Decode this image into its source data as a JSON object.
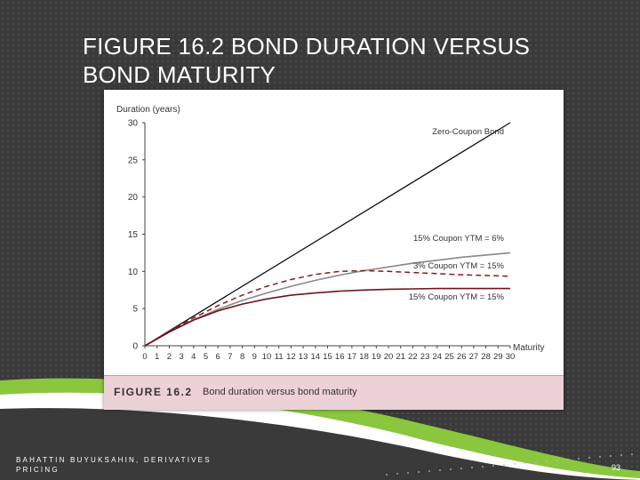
{
  "slide": {
    "title": "FIGURE 16.2 BOND DURATION VERSUS BOND MATURITY",
    "footer_author": "BAHATTIN BUYUKSAHIN, DERIVATIVES PRICING",
    "page_number": "93"
  },
  "figure": {
    "caption_number": "FIGURE 16.2",
    "caption_text": "Bond duration versus bond maturity"
  },
  "colors": {
    "background": "#3a3a3a",
    "accent_green": "#8bc63f",
    "caption_bar": "#ecd1d6",
    "zero_coupon": "#111111",
    "coupon15_ytm6": "#888888",
    "coupon3_ytm15": "#8b1a1a",
    "coupon15_ytm15": "#6b1520"
  },
  "chart_data": {
    "type": "line",
    "ylabel": "Duration (years)",
    "xlabel": "Maturity",
    "xlim": [
      0,
      30
    ],
    "ylim": [
      0,
      30
    ],
    "y_ticks": [
      0,
      5,
      10,
      15,
      20,
      25,
      30
    ],
    "x_ticks": [
      0,
      1,
      2,
      3,
      4,
      5,
      6,
      7,
      8,
      9,
      10,
      11,
      12,
      13,
      14,
      15,
      16,
      17,
      18,
      19,
      20,
      21,
      22,
      23,
      24,
      25,
      26,
      27,
      28,
      29,
      30
    ],
    "grid": false,
    "series": [
      {
        "name": "Zero-Coupon Bond",
        "style": "solid",
        "color_key": "zero_coupon",
        "x": [
          0,
          30
        ],
        "y": [
          0,
          30
        ]
      },
      {
        "name": "15% Coupon YTM = 6%",
        "style": "solid",
        "color_key": "coupon15_ytm6",
        "x": [
          0,
          2,
          4,
          6,
          8,
          10,
          12,
          14,
          16,
          18,
          20,
          22,
          24,
          26,
          28,
          30
        ],
        "y": [
          0,
          1.85,
          3.5,
          4.9,
          6.1,
          7.1,
          8.0,
          8.8,
          9.5,
          10.1,
          10.6,
          11.1,
          11.5,
          11.9,
          12.2,
          12.5
        ]
      },
      {
        "name": "3% Coupon YTM = 15%",
        "style": "dashed",
        "color_key": "coupon3_ytm15",
        "x": [
          0,
          2,
          4,
          6,
          8,
          10,
          12,
          14,
          16,
          18,
          20,
          22,
          24,
          26,
          28,
          30
        ],
        "y": [
          0,
          1.95,
          3.75,
          5.4,
          6.8,
          8.0,
          8.9,
          9.6,
          10.0,
          10.1,
          10.0,
          9.85,
          9.7,
          9.55,
          9.45,
          9.35
        ]
      },
      {
        "name": "15% Coupon YTM = 15%",
        "style": "solid",
        "color_key": "coupon15_ytm15",
        "x": [
          0,
          2,
          4,
          6,
          8,
          10,
          12,
          14,
          16,
          18,
          20,
          22,
          24,
          26,
          28,
          30
        ],
        "y": [
          0,
          1.85,
          3.45,
          4.7,
          5.6,
          6.3,
          6.8,
          7.1,
          7.35,
          7.5,
          7.6,
          7.65,
          7.7,
          7.7,
          7.7,
          7.7
        ]
      }
    ]
  }
}
